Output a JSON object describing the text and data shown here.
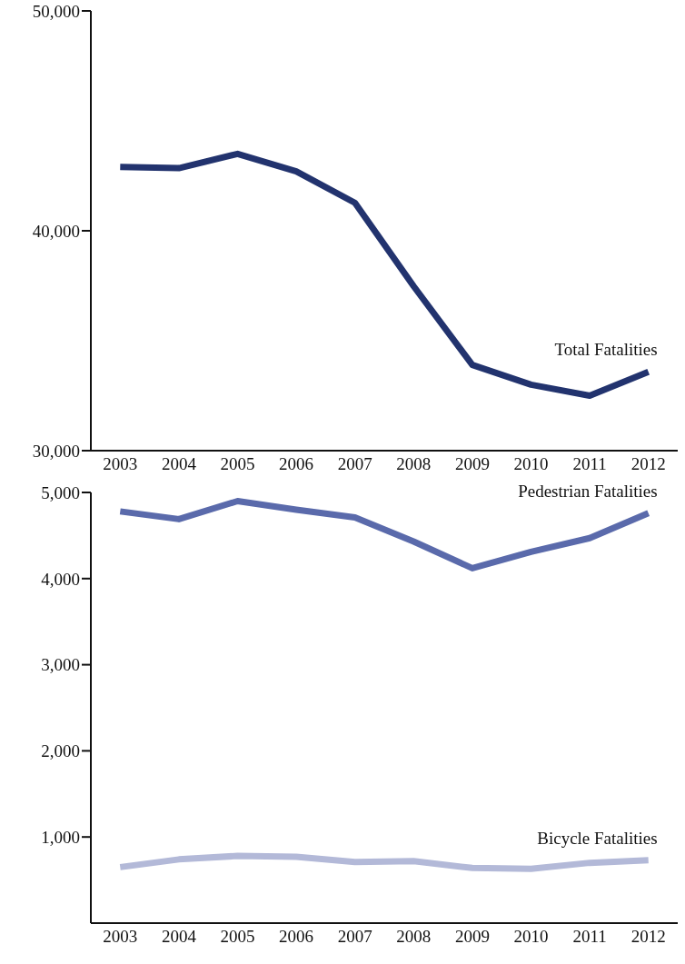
{
  "chart_data": [
    {
      "type": "line",
      "categories": [
        "2003",
        "2004",
        "2005",
        "2006",
        "2007",
        "2008",
        "2009",
        "2010",
        "2011",
        "2012"
      ],
      "series": [
        {
          "name": "Total Fatalities",
          "color": "#22336e",
          "values": [
            42900,
            42850,
            43500,
            42700,
            41270,
            37480,
            33900,
            33000,
            32500,
            33580
          ]
        }
      ],
      "ylim": [
        30000,
        50000
      ],
      "yticks": [
        {
          "value": 30000,
          "label": "30,000"
        },
        {
          "value": 40000,
          "label": "40,000"
        },
        {
          "value": 50000,
          "label": "50,000"
        }
      ],
      "grid": false,
      "legend": false,
      "marker": "none",
      "line_style": "solid"
    },
    {
      "type": "line",
      "categories": [
        "2003",
        "2004",
        "2005",
        "2006",
        "2007",
        "2008",
        "2009",
        "2010",
        "2011",
        "2012"
      ],
      "series": [
        {
          "name": "Pedestrian Fatalities",
          "color": "#5a6aab",
          "values": [
            4780,
            4690,
            4900,
            4800,
            4710,
            4430,
            4120,
            4310,
            4470,
            4760
          ]
        },
        {
          "name": "Bicycle Fatalities",
          "color": "#b3b9d8",
          "values": [
            650,
            740,
            780,
            770,
            710,
            720,
            640,
            630,
            700,
            730
          ]
        }
      ],
      "ylim": [
        0,
        5000
      ],
      "yticks": [
        {
          "value": 1000,
          "label": "1,000"
        },
        {
          "value": 2000,
          "label": "2,000"
        },
        {
          "value": 3000,
          "label": "3,000"
        },
        {
          "value": 4000,
          "label": "4,000"
        },
        {
          "value": 5000,
          "label": "5,000"
        }
      ],
      "grid": false,
      "legend": false,
      "marker": "none",
      "line_style": "solid"
    }
  ]
}
